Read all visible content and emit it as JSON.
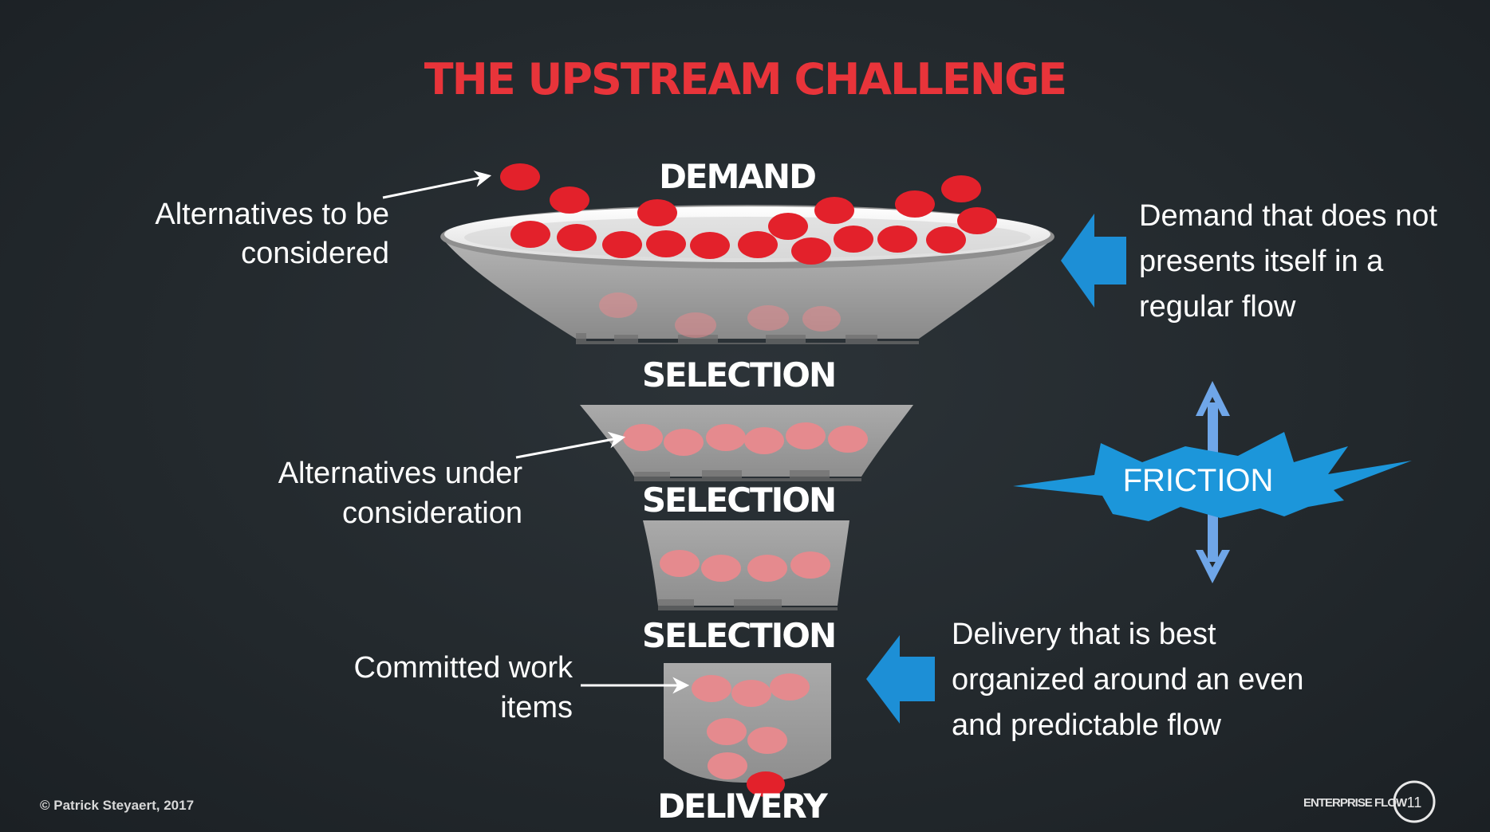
{
  "title": "THE UPSTREAM CHALLENGE",
  "stages": {
    "demand": "DEMAND",
    "selection_1": "SELECTION",
    "selection_2": "SELECTION",
    "selection_3": "SELECTION",
    "delivery": "DELIVERY"
  },
  "left_labels": {
    "alternatives_considered": [
      "Alternatives to be",
      "considered"
    ],
    "alternatives_under": [
      "Alternatives under",
      "consideration"
    ],
    "committed": [
      "Committed work",
      "items"
    ]
  },
  "right_labels": {
    "demand_note": [
      "Demand that does not",
      "presents itself in a",
      "regular flow"
    ],
    "delivery_note": [
      "Delivery that is best",
      "organized around an even",
      "and predictable flow"
    ]
  },
  "friction": "FRICTION",
  "footer": {
    "copyright": "© Patrick Steyaert, 2017",
    "brand": "ENTERPRISE FLOW",
    "page": "11"
  },
  "colors": {
    "title": "#e8343a",
    "item": "#e3212b",
    "faded_item": "#e58a8e",
    "arrow_blue": "#1d8fd6",
    "friction_blue": "#1c96da",
    "double_arrow": "#6fa6e8",
    "funnel_gray": "#9a9a9a"
  },
  "icons": [
    "left-arrow-icon",
    "double-arrow-icon",
    "starburst-icon",
    "page-circle-icon"
  ]
}
